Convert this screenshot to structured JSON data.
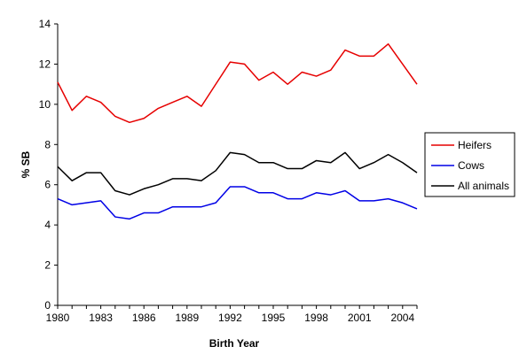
{
  "chart_data": {
    "type": "line",
    "xlabel": "Birth Year",
    "ylabel": "% SB",
    "xlim": [
      1980,
      2005
    ],
    "ylim": [
      0,
      14
    ],
    "x_ticks": [
      1980,
      1983,
      1986,
      1989,
      1992,
      1995,
      1998,
      2001,
      2004
    ],
    "y_ticks": [
      0,
      2,
      4,
      6,
      8,
      10,
      12,
      14
    ],
    "grid": false,
    "legend_position": "right",
    "x": [
      1980,
      1981,
      1982,
      1983,
      1984,
      1985,
      1986,
      1987,
      1988,
      1989,
      1990,
      1991,
      1992,
      1993,
      1994,
      1995,
      1996,
      1997,
      1998,
      1999,
      2000,
      2001,
      2002,
      2003,
      2004,
      2005
    ],
    "series": [
      {
        "name": "Heifers",
        "color": "#e60000",
        "values": [
          11.1,
          9.7,
          10.4,
          10.1,
          9.4,
          9.1,
          9.3,
          9.8,
          10.1,
          10.4,
          9.9,
          11.0,
          12.1,
          12.0,
          11.2,
          11.6,
          11.0,
          11.6,
          11.4,
          11.7,
          12.7,
          12.4,
          12.4,
          13.0,
          12.0,
          11.0
        ]
      },
      {
        "name": "Cows",
        "color": "#0000e6",
        "values": [
          5.3,
          5.0,
          5.1,
          5.2,
          4.4,
          4.3,
          4.6,
          4.6,
          4.9,
          4.9,
          4.9,
          5.1,
          5.9,
          5.9,
          5.6,
          5.6,
          5.3,
          5.3,
          5.6,
          5.5,
          5.7,
          5.2,
          5.2,
          5.3,
          5.1,
          4.8
        ]
      },
      {
        "name": "All animals",
        "color": "#000000",
        "values": [
          6.9,
          6.2,
          6.6,
          6.6,
          5.7,
          5.5,
          5.8,
          6.0,
          6.3,
          6.3,
          6.2,
          6.7,
          7.6,
          7.5,
          7.1,
          7.1,
          6.8,
          6.8,
          7.2,
          7.1,
          7.6,
          6.8,
          7.1,
          7.5,
          7.1,
          6.6
        ]
      }
    ]
  }
}
